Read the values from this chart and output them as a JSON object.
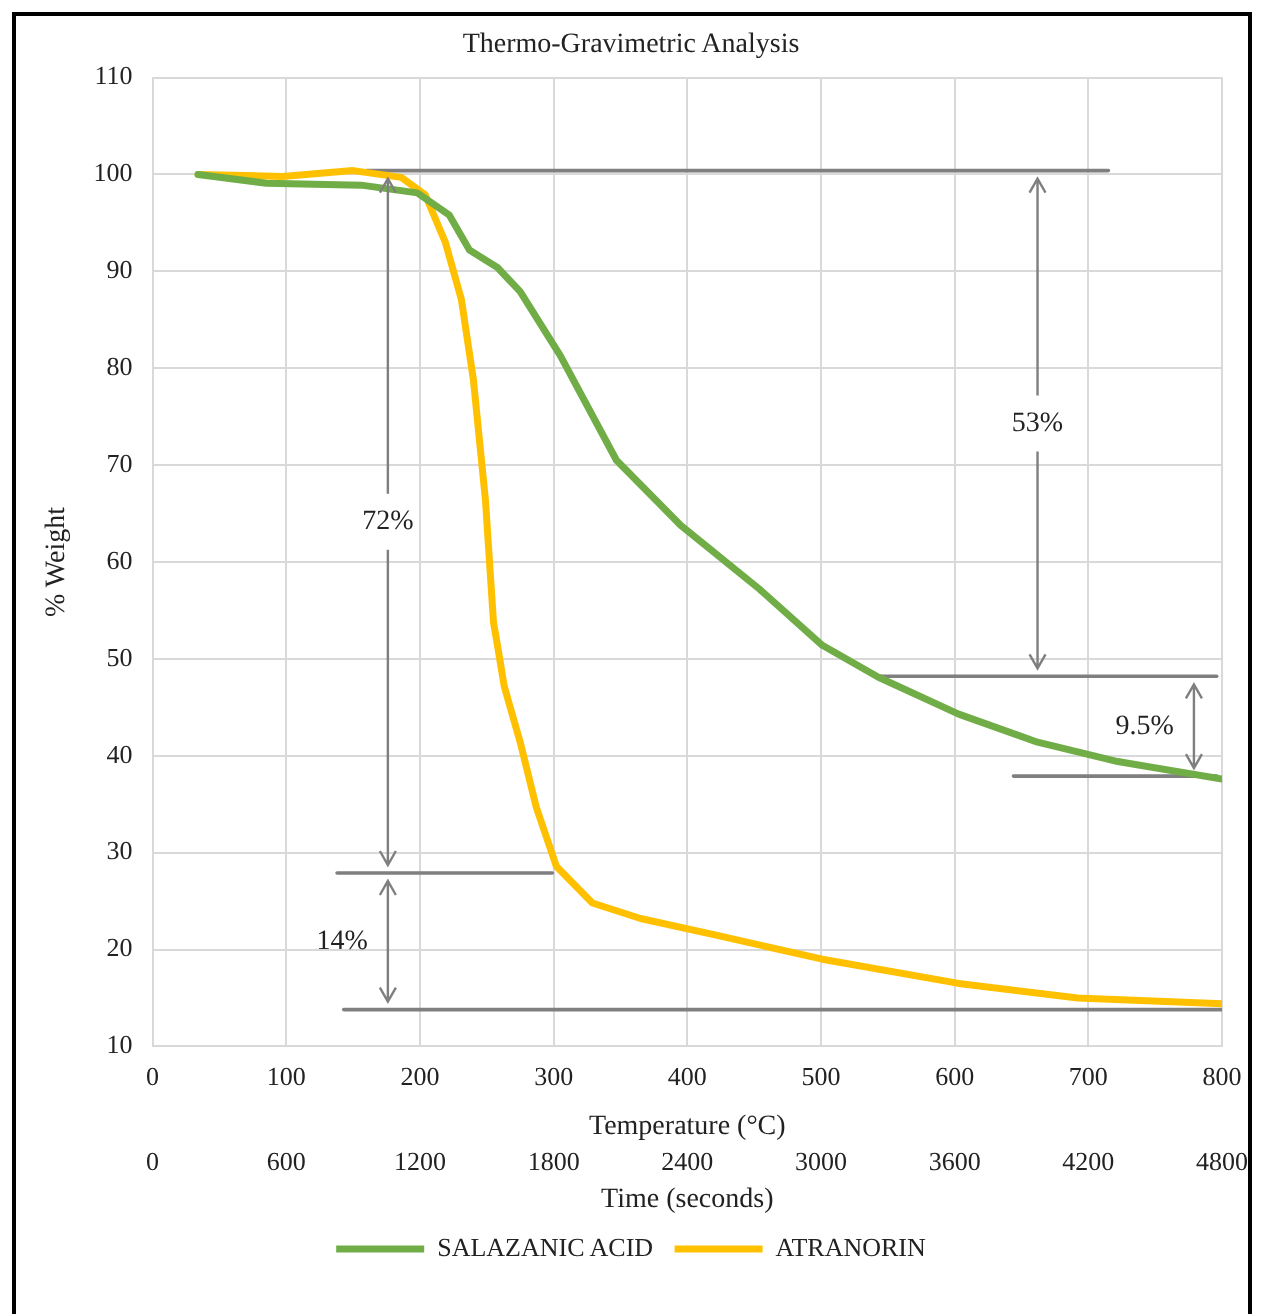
{
  "chart_data": {
    "type": "line",
    "title": "Thermo-Gravimetric Analysis",
    "xlabel": "Temperature (°C)",
    "x2label": "Time (seconds)",
    "ylabel": "% Weight",
    "xlim": [
      0,
      800
    ],
    "xticks": [
      0,
      100,
      200,
      300,
      400,
      500,
      600,
      700,
      800
    ],
    "x2lim": [
      0,
      4800
    ],
    "x2ticks": [
      0,
      600,
      1200,
      1800,
      2400,
      3000,
      3600,
      4200,
      4800
    ],
    "ylim": [
      10,
      110
    ],
    "yticks": [
      10,
      20,
      30,
      40,
      50,
      60,
      70,
      80,
      90,
      100,
      110
    ],
    "grid": true,
    "legend": "bottom",
    "marker": "none",
    "line_style": "solid",
    "series": [
      {
        "name": "SALAZANIC ACID",
        "color": "#70ad47",
        "x": [
          34,
          85,
          156,
          198,
          222,
          237,
          258,
          275,
          305,
          347,
          395,
          454,
          501,
          543,
          603,
          662,
          722,
          800
        ],
        "values": [
          100,
          99.1,
          98.9,
          98.1,
          95.8,
          92.2,
          90.4,
          87.9,
          81.3,
          70.5,
          63.8,
          57.2,
          51.4,
          48.1,
          44.3,
          41.4,
          39.4,
          37.6
        ]
      },
      {
        "name": "ATRANORIN",
        "color": "#ffc000",
        "x": [
          34,
          97,
          150,
          186,
          204,
          219,
          231,
          240,
          249,
          255,
          258,
          263,
          275,
          287,
          302,
          329,
          365,
          424,
          501,
          603,
          692,
          800
        ],
        "values": [
          100,
          99.8,
          100.4,
          99.7,
          97.9,
          93,
          87.1,
          78.8,
          66.4,
          53.8,
          51.4,
          47.2,
          41.4,
          34.7,
          28.6,
          24.8,
          23.2,
          21.4,
          19,
          16.5,
          15,
          14.4
        ]
      },
      {
        "type": "line",
        "color": "#7f7f7f",
        "x": [
          160,
          715
        ],
        "values": [
          100.4,
          100.4
        ]
      },
      {
        "type": "line",
        "color": "#7f7f7f",
        "x": [
          543,
          796
        ],
        "values": [
          48.2,
          48.2
        ]
      },
      {
        "type": "line",
        "color": "#7f7f7f",
        "x": [
          644,
          796
        ],
        "values": [
          37.9,
          37.9
        ]
      },
      {
        "type": "line",
        "color": "#7f7f7f",
        "x": [
          138,
          299
        ],
        "values": [
          27.9,
          27.9
        ]
      },
      {
        "type": "line",
        "color": "#7f7f7f",
        "x": [
          143,
          800
        ],
        "values": [
          13.8,
          13.8
        ]
      }
    ],
    "annotations": [
      {
        "text": "72%",
        "x": 176,
        "y": 27.9
      },
      {
        "text": "53%",
        "x": 662,
        "y": 48.2
      },
      {
        "text": "9.5%",
        "x": 779,
        "y": 37.9
      },
      {
        "text": "14%",
        "x": 176,
        "y": 13.8
      }
    ]
  }
}
